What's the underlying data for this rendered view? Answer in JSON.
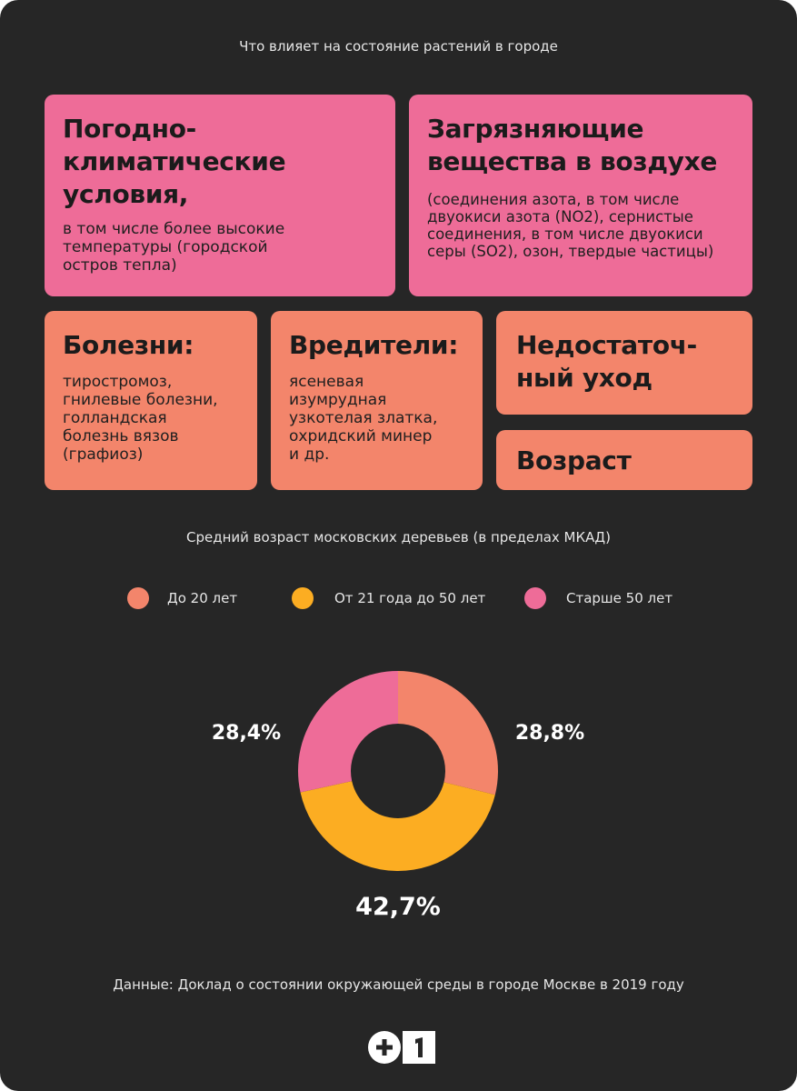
{
  "header": {
    "title": "Что влияет на состояние растений в городе"
  },
  "factors": [
    {
      "title": "Погодно-\nклиматические\nусловия,",
      "body": "в том числе более высокие\nтемпературы (городской\nостров тепла)"
    },
    {
      "title": "Загрязняющие\nвещества в воздухе",
      "body": "(соединения азота, в том числе\nдвуокиси азота (NO2), сернистые\nсоединения, в том числе двуокиси\nсеры (SO2), озон, твердые частицы)"
    },
    {
      "title": "Болезни:",
      "body": "тиростромоз,\nгнилевые болезни,\nголландская\nболезнь вязов\n(графиоз)"
    },
    {
      "title": "Вредители:",
      "body": "ясеневая\nизумрудная\nузкотелая златка,\nохридский минер\nи др."
    },
    {
      "title": "Недостаточ-\nный уход"
    },
    {
      "title": "Возраст"
    }
  ],
  "colors": {
    "background": "#262626",
    "card_pink": "#ee6c98",
    "card_salmon": "#f3856b",
    "slice_young": "#f3856b",
    "slice_middle": "#fcad22",
    "slice_old": "#ee6c98"
  },
  "chart_data": {
    "type": "pie",
    "title": "Средний возраст московских деревьев (в пределах МКАД)",
    "donut": true,
    "legend_position": "top",
    "categories": [
      "До 20 лет",
      "От 21 года до 50 лет",
      "Старше 50 лет"
    ],
    "values": [
      28.8,
      42.7,
      28.4
    ],
    "labels": [
      "28,8%",
      "42,7%",
      "28,4%"
    ],
    "colors": [
      "#f3856b",
      "#fcad22",
      "#ee6c98"
    ]
  },
  "footer": {
    "source": "Данные: Доклад о состоянии окружающей среды в городе Москве в 2019 году",
    "logo_text": "+1"
  }
}
